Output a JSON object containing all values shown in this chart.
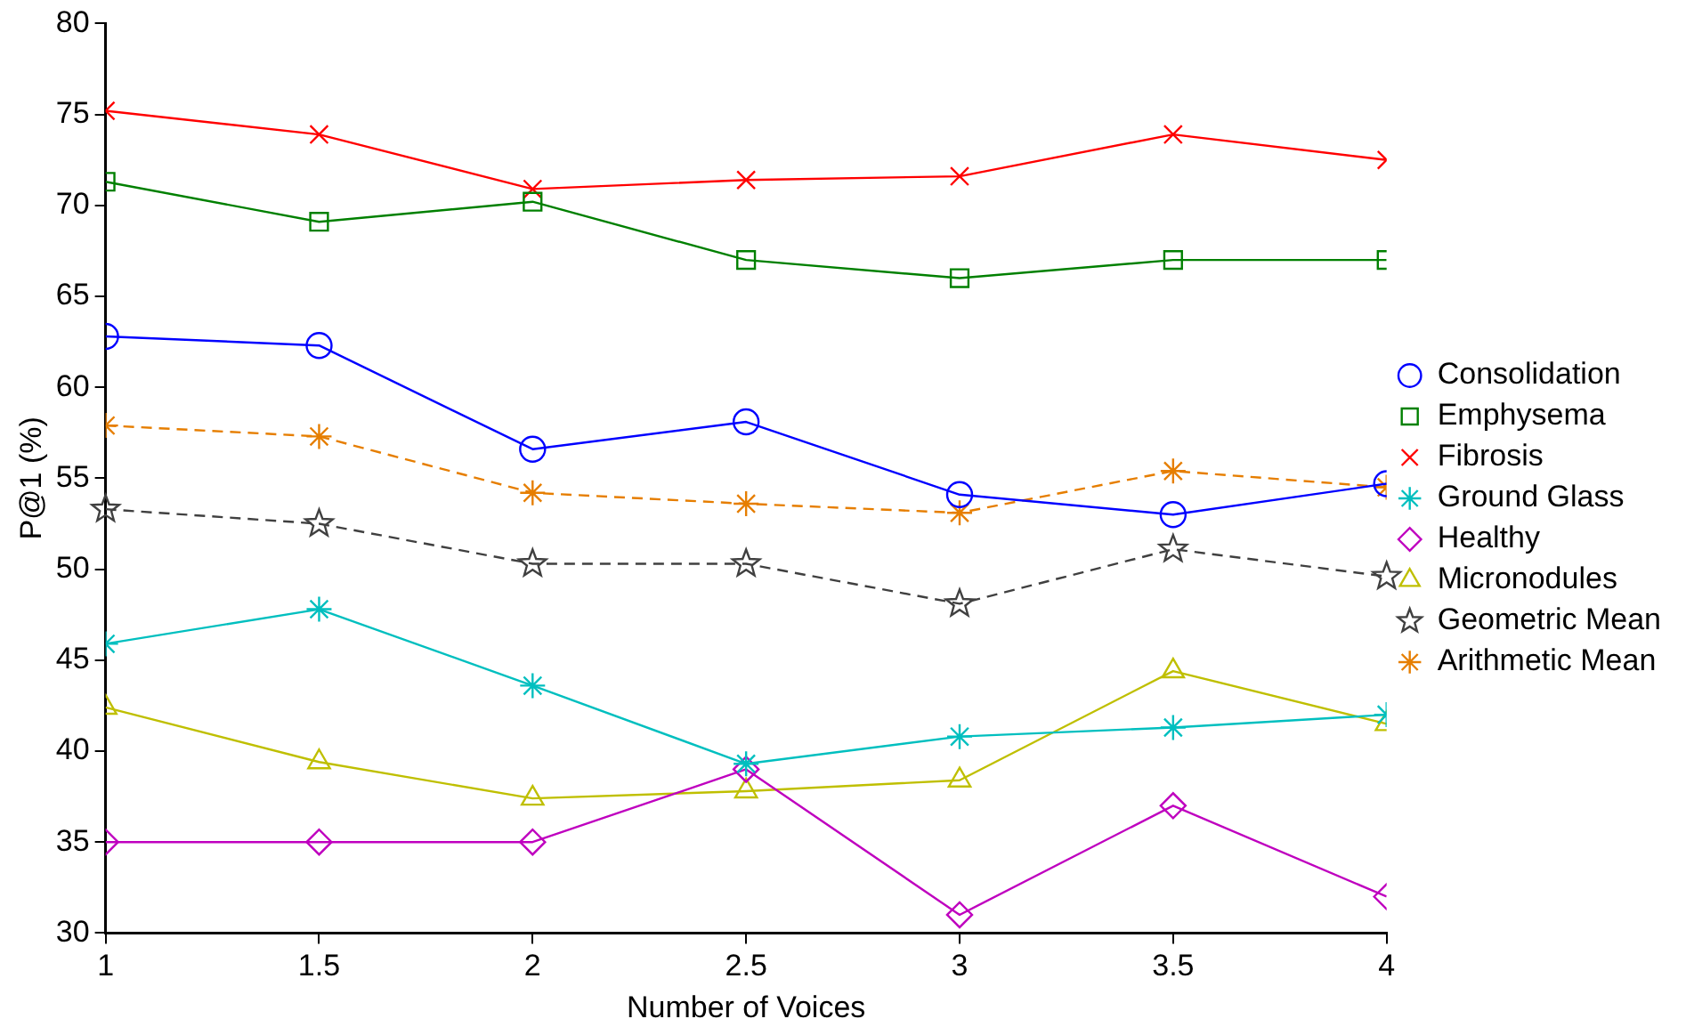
{
  "chart_data": {
    "type": "line",
    "xlabel": "Number of Voices",
    "ylabel": "P@1 (%)",
    "x": [
      1,
      1.5,
      2,
      2.5,
      3,
      3.5,
      4
    ],
    "xlim": [
      1,
      4
    ],
    "xticks": [
      1,
      1.5,
      2,
      2.5,
      3,
      3.5,
      4
    ],
    "ylim": [
      30,
      80
    ],
    "yticks": [
      30,
      35,
      40,
      45,
      50,
      55,
      60,
      65,
      70,
      75,
      80
    ],
    "grid": false,
    "legend": "right",
    "series": [
      {
        "name": "Consolidation",
        "color": "#0000ff",
        "marker": "circle",
        "line_style": "solid",
        "values": [
          62.8,
          62.3,
          56.6,
          58.1,
          54.1,
          53.0,
          54.7
        ]
      },
      {
        "name": "Emphysema",
        "color": "#008000",
        "marker": "square",
        "line_style": "solid",
        "values": [
          71.3,
          69.1,
          70.2,
          67.0,
          66.0,
          67.0,
          67.0
        ]
      },
      {
        "name": "Fibrosis",
        "color": "#ff0000",
        "marker": "x",
        "line_style": "solid",
        "values": [
          75.2,
          73.9,
          70.9,
          71.4,
          71.6,
          73.9,
          72.5
        ]
      },
      {
        "name": "Ground Glass",
        "color": "#00bfbf",
        "marker": "cross",
        "line_style": "solid",
        "values": [
          45.9,
          47.8,
          43.6,
          39.3,
          40.8,
          41.3,
          42.0
        ]
      },
      {
        "name": "Healthy",
        "color": "#bf00bf",
        "marker": "diamond",
        "line_style": "solid",
        "values": [
          35.0,
          35.0,
          35.0,
          39.0,
          31.0,
          37.0,
          32.0
        ]
      },
      {
        "name": "Micronodules",
        "color": "#bfbf00",
        "marker": "triangle",
        "line_style": "solid",
        "values": [
          42.4,
          39.4,
          37.4,
          37.8,
          38.4,
          44.4,
          41.5
        ]
      },
      {
        "name": "Geometric Mean",
        "color": "#404040",
        "marker": "star",
        "line_style": "dashed",
        "values": [
          53.3,
          52.5,
          50.3,
          50.3,
          48.1,
          51.1,
          49.6
        ]
      },
      {
        "name": "Arithmetic Mean",
        "color": "#e67e00",
        "marker": "cross",
        "line_style": "dashed",
        "values": [
          57.9,
          57.3,
          54.2,
          53.6,
          53.1,
          55.4,
          54.5
        ]
      }
    ]
  }
}
